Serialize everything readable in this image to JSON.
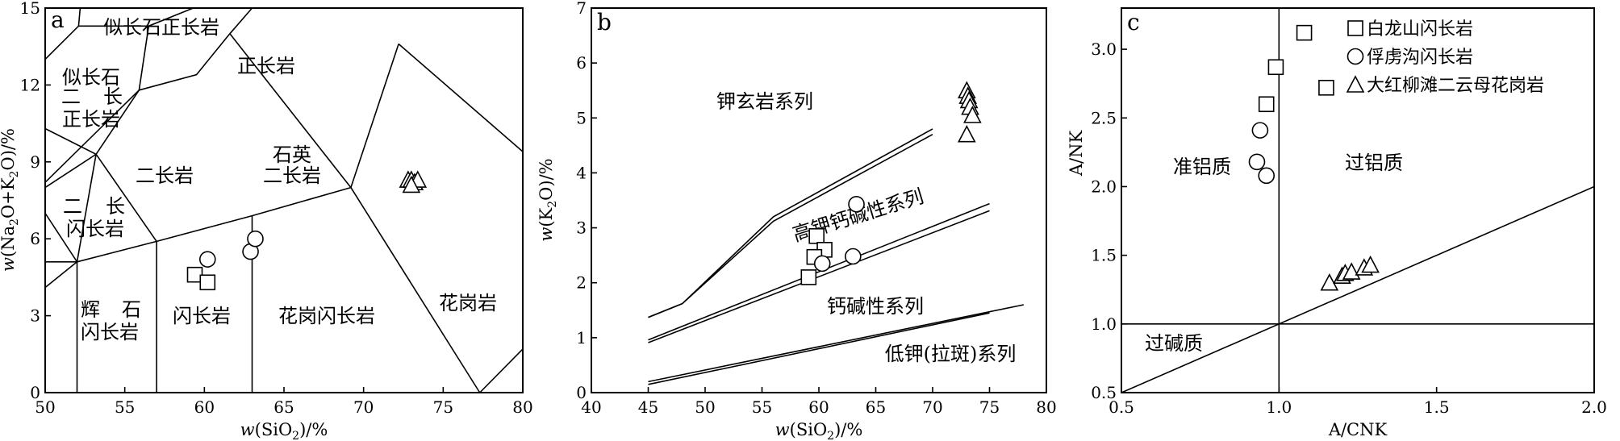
{
  "chart_data": [
    {
      "panel": "a",
      "type": "scatter",
      "xlabel": "w(SiO2)/%",
      "ylabel": "w(Na2O+K2O)/%",
      "xlim": [
        50,
        80
      ],
      "ylim": [
        0,
        15
      ],
      "xticks": [
        "50",
        "55",
        "60",
        "65",
        "70",
        "75",
        "80"
      ],
      "yticks": [
        "0",
        "3",
        "6",
        "9",
        "12",
        "15"
      ],
      "fields": [
        "似长石正长岩",
        "正长岩",
        "似长石",
        "二",
        "长",
        "正长岩",
        "石英",
        "二长岩",
        "二长岩",
        "二",
        "长",
        "闪长岩",
        "花岗岩",
        "辉",
        "石",
        "闪长岩",
        "闪长岩",
        "花岗闪长岩"
      ],
      "boundaries": [
        [
          [
            50,
            13.0
          ],
          [
            52.1,
            14.3
          ],
          [
            52.2,
            15.0
          ]
        ],
        [
          [
            52.1,
            14.3
          ],
          [
            56.5,
            14.3
          ],
          [
            59.3,
            15.0
          ]
        ],
        [
          [
            56.5,
            14.3
          ],
          [
            55.9,
            11.8
          ],
          [
            50,
            8.2
          ]
        ],
        [
          [
            50,
            10.3
          ],
          [
            53.2,
            9.3
          ],
          [
            55.9,
            11.8
          ]
        ],
        [
          [
            55.9,
            11.8
          ],
          [
            59.5,
            12.4
          ],
          [
            61.6,
            14.0
          ],
          [
            63.0,
            15.0
          ]
        ],
        [
          [
            50,
            8.0
          ],
          [
            53.2,
            9.3
          ],
          [
            57.0,
            5.9
          ]
        ],
        [
          [
            50,
            7.0
          ],
          [
            52.0,
            5.1
          ],
          [
            53.2,
            9.3
          ]
        ],
        [
          [
            52.0,
            5.1
          ],
          [
            57.0,
            5.9
          ],
          [
            63.0,
            6.9
          ],
          [
            69.2,
            8.0
          ],
          [
            72.2,
            13.6
          ]
        ],
        [
          [
            61.6,
            14.0
          ],
          [
            69.2,
            8.0
          ]
        ],
        [
          [
            57.0,
            5.9
          ],
          [
            57.0,
            0
          ]
        ],
        [
          [
            63.0,
            6.9
          ],
          [
            63.0,
            0
          ]
        ],
        [
          [
            52.0,
            5.1
          ],
          [
            52.0,
            0
          ]
        ],
        [
          [
            50,
            5.1
          ],
          [
            52.0,
            5.1
          ]
        ],
        [
          [
            50,
            4.1
          ],
          [
            52.0,
            5.1
          ]
        ],
        [
          [
            69.2,
            8.0
          ],
          [
            77.3,
            0
          ]
        ],
        [
          [
            72.2,
            13.6
          ],
          [
            80,
            9.4
          ]
        ],
        [
          [
            77.3,
            0
          ],
          [
            80,
            1.7
          ]
        ]
      ],
      "series": [
        {
          "marker": "square",
          "points": [
            [
              59.4,
              4.6
            ],
            [
              60.2,
              4.3
            ]
          ]
        },
        {
          "marker": "circle",
          "points": [
            [
              60.2,
              5.2
            ],
            [
              62.9,
              5.5
            ],
            [
              63.2,
              6.0
            ]
          ]
        },
        {
          "marker": "triangle",
          "points": [
            [
              72.8,
              8.3
            ],
            [
              73.0,
              8.3
            ],
            [
              73.2,
              8.2
            ],
            [
              73.4,
              8.3
            ],
            [
              73.0,
              8.1
            ]
          ]
        }
      ]
    },
    {
      "panel": "b",
      "type": "scatter",
      "xlabel": "w(SiO2)/%",
      "ylabel": "w(K2O)/%",
      "xlim": [
        40,
        80
      ],
      "ylim": [
        0,
        7
      ],
      "xticks": [
        "40",
        "45",
        "50",
        "55",
        "60",
        "65",
        "70",
        "75",
        "80"
      ],
      "yticks": [
        "0",
        "1",
        "2",
        "3",
        "4",
        "5",
        "6",
        "7"
      ],
      "fields": [
        "钾玄岩系列",
        "高钾钙碱性系列",
        "钙碱性系列",
        "低钾(拉斑)系列"
      ],
      "boundaries": [
        [
          [
            45,
            1.37
          ],
          [
            48,
            1.62
          ],
          [
            56,
            3.2
          ],
          [
            70,
            4.8
          ]
        ],
        [
          [
            45,
            1.37
          ],
          [
            48,
            1.62
          ],
          [
            56,
            3.12
          ],
          [
            70,
            4.7
          ]
        ],
        [
          [
            45,
            0.96
          ],
          [
            75,
            3.44
          ]
        ],
        [
          [
            45,
            0.91
          ],
          [
            75,
            3.31
          ]
        ],
        [
          [
            45,
            0.2
          ],
          [
            78,
            1.6
          ]
        ],
        [
          [
            45,
            0.15
          ],
          [
            75,
            1.45
          ]
        ]
      ],
      "series": [
        {
          "marker": "square",
          "points": [
            [
              59.8,
              2.85
            ],
            [
              60.5,
              2.6
            ],
            [
              59.6,
              2.47
            ],
            [
              59.1,
              2.1
            ]
          ]
        },
        {
          "marker": "circle",
          "points": [
            [
              63.3,
              3.43
            ],
            [
              63.0,
              2.48
            ],
            [
              60.3,
              2.35
            ]
          ]
        },
        {
          "marker": "triangle",
          "points": [
            [
              73.0,
              5.5
            ],
            [
              73.1,
              5.4
            ],
            [
              73.2,
              5.32
            ],
            [
              73.3,
              5.2
            ],
            [
              73.5,
              5.05
            ],
            [
              73.0,
              4.7
            ]
          ]
        }
      ]
    },
    {
      "panel": "c",
      "type": "scatter",
      "xlabel": "A/CNK",
      "ylabel": "A/NK",
      "xlim": [
        0.5,
        2.0
      ],
      "ylim": [
        0.5,
        3.3
      ],
      "xticks": [
        "0.5",
        "1.0",
        "1.5",
        "2.0"
      ],
      "yticks": [
        "0.5",
        "1.0",
        "1.5",
        "2.0",
        "2.5",
        "3.0"
      ],
      "fields": [
        "准铝质",
        "过铝质",
        "过碱质"
      ],
      "boundaries": [
        [
          [
            0.5,
            1.0
          ],
          [
            2.0,
            1.0
          ]
        ],
        [
          [
            1.0,
            0.5
          ],
          [
            1.0,
            3.3
          ]
        ],
        [
          [
            0.5,
            0.5
          ],
          [
            2.0,
            2.0
          ]
        ]
      ],
      "legend": [
        "白龙山闪长岩",
        "俘虏沟闪长岩",
        "大红柳滩二云母花岗岩"
      ],
      "series": [
        {
          "name": "白龙山闪长岩",
          "marker": "square",
          "points": [
            [
              1.08,
              3.12
            ],
            [
              0.99,
              2.87
            ],
            [
              1.15,
              2.72
            ],
            [
              0.96,
              2.6
            ]
          ]
        },
        {
          "name": "俘虏沟闪长岩",
          "marker": "circle",
          "points": [
            [
              0.94,
              2.41
            ],
            [
              0.93,
              2.18
            ],
            [
              0.96,
              2.08
            ]
          ]
        },
        {
          "name": "大红柳滩二云母花岗岩",
          "marker": "triangle",
          "points": [
            [
              1.16,
              1.3
            ],
            [
              1.2,
              1.35
            ],
            [
              1.21,
              1.37
            ],
            [
              1.23,
              1.38
            ],
            [
              1.27,
              1.41
            ],
            [
              1.29,
              1.43
            ]
          ]
        }
      ]
    }
  ]
}
